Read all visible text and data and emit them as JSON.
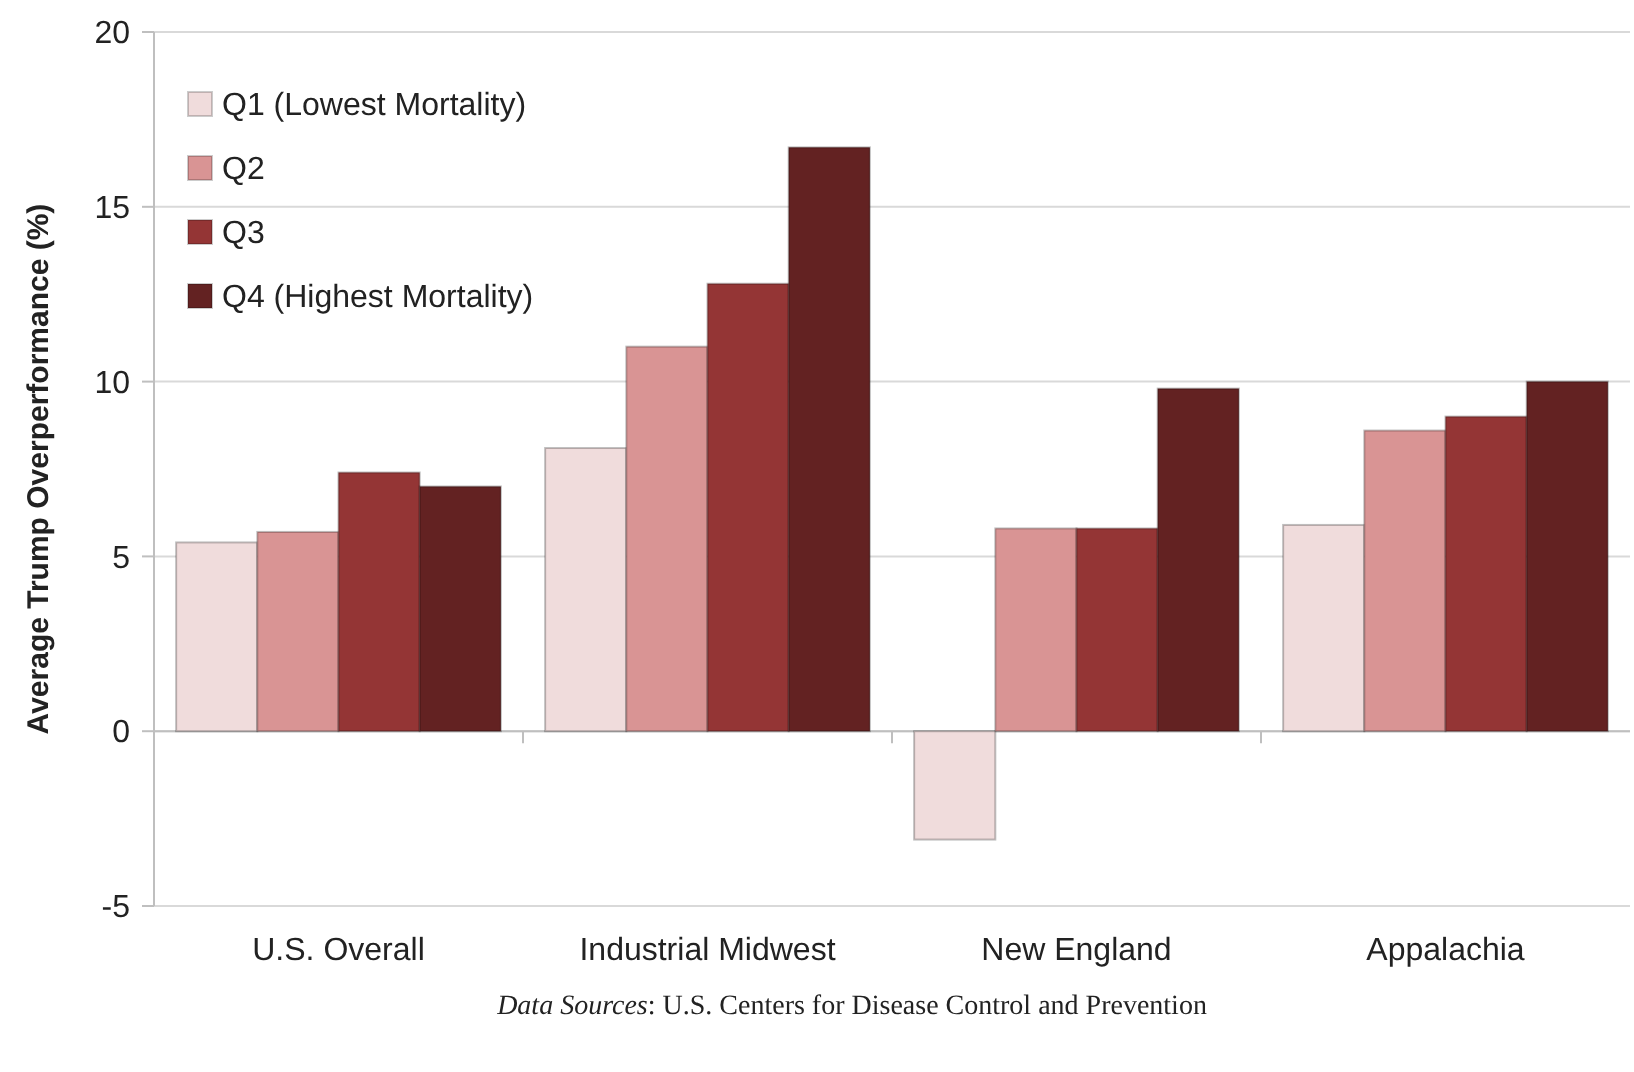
{
  "chart_data": {
    "type": "bar",
    "ylabel": "Average Trump Overperformance (%)",
    "categories": [
      "U.S. Overall",
      "Industrial Midwest",
      "New England",
      "Appalachia"
    ],
    "series": [
      {
        "name": "Q1 (Lowest Mortality)",
        "color": "#f0dcdc",
        "values": [
          5.4,
          8.1,
          -3.1,
          5.9
        ]
      },
      {
        "name": "Q2",
        "color": "#d99494",
        "values": [
          5.7,
          11.0,
          5.8,
          8.6
        ]
      },
      {
        "name": "Q3",
        "color": "#943535",
        "values": [
          7.4,
          12.8,
          5.8,
          9.0
        ]
      },
      {
        "name": "Q4 (Highest Mortality)",
        "color": "#632222",
        "values": [
          7.0,
          16.7,
          9.8,
          10.0
        ]
      }
    ],
    "ylim": [
      -5,
      20
    ],
    "yticks": [
      -5,
      0,
      5,
      10,
      15,
      20
    ],
    "grid": "y",
    "legend": "top left",
    "annotations": [
      "Data Sources: U.S. Centers for Disease Control and Prevention"
    ]
  }
}
